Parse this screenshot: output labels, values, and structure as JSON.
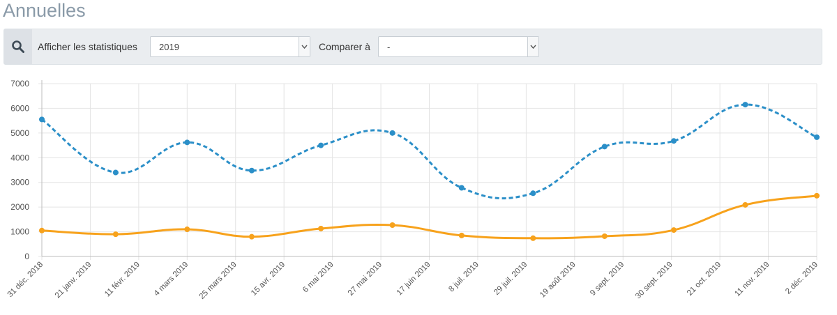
{
  "page": {
    "title": "Annuelles"
  },
  "filters": {
    "show_label": "Afficher les statistiques",
    "year_value": "2019",
    "compare_label": "Comparer à",
    "compare_value": "-"
  },
  "icons": {
    "search": "search-icon",
    "dropdown": "chevron-down-icon"
  },
  "chart_data": {
    "type": "line",
    "ylim": [
      0,
      7000
    ],
    "yticks": [
      0,
      1000,
      2000,
      3000,
      4000,
      5000,
      6000,
      7000
    ],
    "xlabels": [
      "31 déc. 2018",
      "21 janv. 2019",
      "11 févr. 2019",
      "4 mars 2019",
      "25 mars 2019",
      "15 avr. 2019",
      "6 mai 2019",
      "27 mai 2019",
      "17 juin 2019",
      "8 juil. 2019",
      "29 juil. 2019",
      "19 août 2019",
      "9 sept. 2019",
      "30 sept. 2019",
      "21 oct. 2019",
      "11 nov. 2019",
      "2 déc. 2019"
    ],
    "x": [
      "31 déc. 2018",
      "1 févr. 2019",
      "4 mars 2019",
      "1 avr. 2019",
      "1 mai 2019",
      "1 juin 2019",
      "1 juil. 2019",
      "1 août 2019",
      "1 sept. 2019",
      "1 oct. 2019",
      "1 nov. 2019",
      "2 déc. 2019"
    ],
    "series": [
      {
        "color": "#2b8fc8",
        "dashed": true,
        "values": [
          5550,
          3400,
          4620,
          3480,
          4500,
          5000,
          2780,
          2560,
          4450,
          4680,
          6150,
          4830
        ]
      },
      {
        "color": "#f7a21c",
        "dashed": false,
        "values": [
          1050,
          900,
          1100,
          800,
          1130,
          1270,
          850,
          740,
          820,
          1070,
          2090,
          2460
        ]
      }
    ],
    "grid": true
  }
}
